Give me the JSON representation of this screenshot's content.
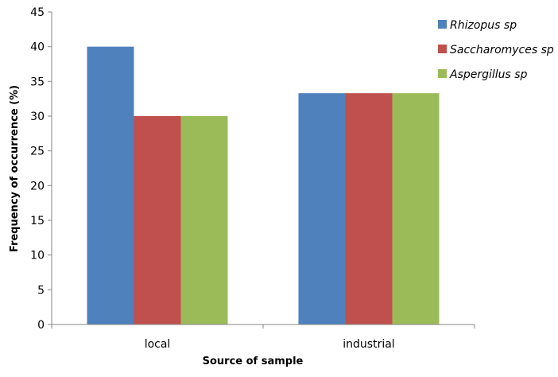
{
  "chart_data": {
    "type": "bar",
    "title": "",
    "xlabel": "Source of sample",
    "ylabel": "Frequency of occurrence (%)",
    "ylim": [
      0,
      45
    ],
    "yticks": [
      0,
      5,
      10,
      15,
      20,
      25,
      30,
      35,
      40,
      45
    ],
    "categories": [
      "local",
      "industrial"
    ],
    "series": [
      {
        "name": "Rhizopus sp",
        "color": "#4F81BD",
        "values": [
          40,
          33.3
        ]
      },
      {
        "name": "Saccharomyces sp",
        "color": "#C0504D",
        "values": [
          30,
          33.3
        ]
      },
      {
        "name": "Aspergillus sp",
        "color": "#9BBB59",
        "values": [
          30,
          33.3
        ]
      }
    ],
    "grid": false,
    "legend": "top-right"
  }
}
